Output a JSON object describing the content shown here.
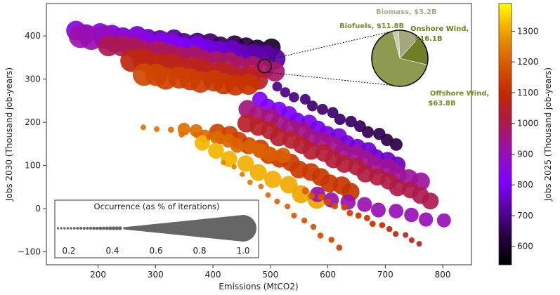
{
  "chart_data": {
    "type": "scatter",
    "title": "",
    "xlabel": "Emissions (MtCO2)",
    "ylabel": "Jobs 2030 (Thousand job-years)",
    "xlim": [
      110,
      850
    ],
    "ylim": [
      -130,
      475
    ],
    "xticks": [
      200,
      300,
      400,
      500,
      600,
      700,
      800
    ],
    "yticks": [
      -100,
      0,
      100,
      200,
      300,
      400
    ],
    "grid": false,
    "colorbar": {
      "label": "Jobs 2025 (Thousand job-years)",
      "range": [
        540,
        1390
      ],
      "ticks": [
        600,
        700,
        800,
        900,
        1000,
        1100,
        1200,
        1300
      ],
      "colormap": "gnuplot"
    },
    "size_legend": {
      "title": "Occurrence (as % of iterations)",
      "tick_labels": [
        "0.2",
        "0.4",
        "0.6",
        "0.8",
        "1.0"
      ],
      "range": [
        0.15,
        1.05
      ],
      "dot_start": 0.15,
      "wedge_start": 0.45,
      "wedge_end": 1.0
    },
    "bands": [
      {
        "x0": 160,
        "y0": 410,
        "x1": 500,
        "y1": 370,
        "n": 17,
        "c0": 840,
        "c1": 600,
        "s0": 0.6,
        "s1": 0.55
      },
      {
        "x0": 170,
        "y0": 400,
        "x1": 510,
        "y1": 350,
        "n": 18,
        "c0": 920,
        "c1": 720,
        "s0": 0.75,
        "s1": 0.65
      },
      {
        "x0": 220,
        "y0": 380,
        "x1": 510,
        "y1": 320,
        "n": 15,
        "c0": 1000,
        "c1": 980,
        "s0": 0.65,
        "s1": 0.6
      },
      {
        "x0": 260,
        "y0": 345,
        "x1": 480,
        "y1": 300,
        "n": 14,
        "c0": 1080,
        "c1": 1050,
        "s0": 0.7,
        "s1": 0.6
      },
      {
        "x0": 280,
        "y0": 310,
        "x1": 460,
        "y1": 285,
        "n": 10,
        "c0": 1160,
        "c1": 1120,
        "s0": 0.7,
        "s1": 0.65
      },
      {
        "x0": 510,
        "y0": 280,
        "x1": 720,
        "y1": 150,
        "n": 14,
        "c0": 700,
        "c1": 640,
        "s0": 0.25,
        "s1": 0.35
      },
      {
        "x0": 480,
        "y0": 250,
        "x1": 720,
        "y1": 100,
        "n": 15,
        "c0": 820,
        "c1": 760,
        "s0": 0.45,
        "s1": 0.5
      },
      {
        "x0": 460,
        "y0": 230,
        "x1": 760,
        "y1": 60,
        "n": 17,
        "c0": 960,
        "c1": 930,
        "s0": 0.55,
        "s1": 0.55
      },
      {
        "x0": 460,
        "y0": 200,
        "x1": 780,
        "y1": 20,
        "n": 18,
        "c0": 1050,
        "c1": 1000,
        "s0": 0.55,
        "s1": 0.5
      },
      {
        "x0": 410,
        "y0": 180,
        "x1": 640,
        "y1": 40,
        "n": 14,
        "c0": 1150,
        "c1": 1120,
        "s0": 0.5,
        "s1": 0.55
      },
      {
        "x0": 350,
        "y0": 185,
        "x1": 520,
        "y1": 120,
        "n": 10,
        "c0": 1230,
        "c1": 1200,
        "s0": 0.35,
        "s1": 0.45
      },
      {
        "x0": 380,
        "y0": 150,
        "x1": 580,
        "y1": 20,
        "n": 9,
        "c0": 1320,
        "c1": 1300,
        "s0": 0.45,
        "s1": 0.55
      },
      {
        "x0": 580,
        "y0": 30,
        "x1": 800,
        "y1": -30,
        "n": 9,
        "c0": 920,
        "c1": 900,
        "s0": 0.45,
        "s1": 0.4
      },
      {
        "x0": 560,
        "y0": 40,
        "x1": 760,
        "y1": -80,
        "n": 16,
        "c0": 1200,
        "c1": 1050,
        "s0": 0.15,
        "s1": 0.1
      },
      {
        "x0": 280,
        "y0": 190,
        "x1": 460,
        "y1": 150,
        "n": 9,
        "c0": 1240,
        "c1": 1200,
        "s0": 0.1,
        "s1": 0.15
      },
      {
        "x0": 420,
        "y0": 110,
        "x1": 620,
        "y1": -90,
        "n": 14,
        "c0": 1260,
        "c1": 1150,
        "s0": 0.08,
        "s1": 0.12
      }
    ],
    "highlight": {
      "x": 490,
      "y": 330,
      "size": 0.38
    },
    "pie": {
      "slices": [
        {
          "label": "Offshore Wind,",
          "value_label": "$63.8B",
          "value": 63.8,
          "color": "#8d9a50"
        },
        {
          "label": "Onshore Wind,",
          "value_label": "$16.1B",
          "value": 16.1,
          "color": "#6f7f28"
        },
        {
          "label": "Biofuels,",
          "value_label": "$11.8B",
          "value": 11.8,
          "color": "#a3a87a"
        },
        {
          "label": "Biomass,",
          "value_label": "$3.2B",
          "value": 3.2,
          "color": "#c8c9ae"
        }
      ],
      "label_lines": [
        {
          "text": "Biomass, $3.2B",
          "class": "light"
        },
        {
          "text": "Biofuels, $11.8B",
          "class": "mid"
        },
        {
          "text": "Onshore Wind,",
          "class": "dark"
        },
        {
          "text": "$16.1B",
          "class": "dark"
        },
        {
          "text": "Offshore Wind,",
          "class": "mid"
        },
        {
          "text": "$63.8B",
          "class": "mid"
        }
      ]
    }
  }
}
